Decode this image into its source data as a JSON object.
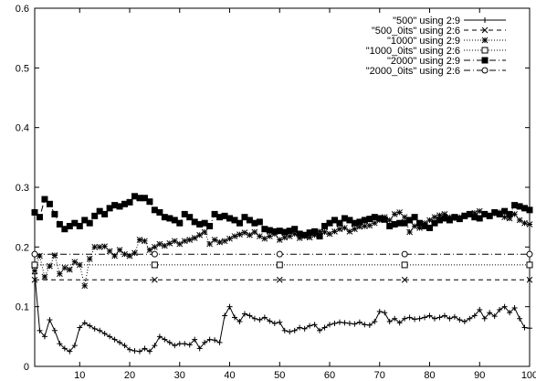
{
  "chart_data": {
    "type": "line",
    "title": "",
    "xlabel": "",
    "ylabel": "",
    "xlim": [
      1,
      100
    ],
    "ylim": [
      0,
      0.6
    ],
    "x_ticks": [
      10,
      20,
      30,
      40,
      50,
      60,
      70,
      80,
      90,
      100
    ],
    "x_tick_labels": [
      "10",
      "20",
      "30",
      "40",
      "50",
      "60",
      "70",
      "80",
      "90",
      "100"
    ],
    "y_ticks": [
      0,
      0.1,
      0.2,
      0.3,
      0.4,
      0.5,
      0.6
    ],
    "y_tick_labels": [
      "0",
      "0.1",
      "0.2",
      "0.3",
      "0.4",
      "0.5",
      "0.6"
    ],
    "grid": false,
    "legend_position": "top-right",
    "series": [
      {
        "name": "\"500\" using 2:9",
        "marker": "plus",
        "dash": "solid",
        "x": [
          1,
          2,
          3,
          4,
          5,
          6,
          7,
          8,
          9,
          10,
          11,
          12,
          13,
          14,
          15,
          16,
          17,
          18,
          19,
          20,
          21,
          22,
          23,
          24,
          25,
          26,
          27,
          28,
          29,
          30,
          31,
          32,
          33,
          34,
          35,
          36,
          37,
          38,
          39,
          40,
          41,
          42,
          43,
          44,
          45,
          46,
          47,
          48,
          49,
          50,
          51,
          52,
          53,
          54,
          55,
          56,
          57,
          58,
          59,
          60,
          61,
          62,
          63,
          64,
          65,
          66,
          67,
          68,
          69,
          70,
          71,
          72,
          73,
          74,
          75,
          76,
          77,
          78,
          79,
          80,
          81,
          82,
          83,
          84,
          85,
          86,
          87,
          88,
          89,
          90,
          91,
          92,
          93,
          94,
          95,
          96,
          97,
          98,
          99,
          100
        ],
        "y": [
          0.155,
          0.06,
          0.05,
          0.078,
          0.06,
          0.038,
          0.03,
          0.025,
          0.035,
          0.065,
          0.073,
          0.068,
          0.063,
          0.06,
          0.055,
          0.05,
          0.045,
          0.04,
          0.035,
          0.028,
          0.026,
          0.025,
          0.03,
          0.025,
          0.035,
          0.05,
          0.045,
          0.04,
          0.035,
          0.038,
          0.038,
          0.036,
          0.045,
          0.03,
          0.04,
          0.045,
          0.044,
          0.04,
          0.085,
          0.1,
          0.082,
          0.075,
          0.088,
          0.085,
          0.08,
          0.078,
          0.082,
          0.076,
          0.072,
          0.074,
          0.06,
          0.058,
          0.06,
          0.065,
          0.063,
          0.068,
          0.07,
          0.06,
          0.065,
          0.07,
          0.072,
          0.074,
          0.073,
          0.072,
          0.071,
          0.074,
          0.07,
          0.069,
          0.075,
          0.092,
          0.09,
          0.075,
          0.08,
          0.073,
          0.08,
          0.082,
          0.079,
          0.08,
          0.082,
          0.085,
          0.08,
          0.082,
          0.085,
          0.08,
          0.083,
          0.078,
          0.075,
          0.08,
          0.085,
          0.095,
          0.08,
          0.09,
          0.084,
          0.095,
          0.1,
          0.09,
          0.098,
          0.08,
          0.065,
          0.064
        ]
      },
      {
        "name": "\"500_0its\" using 2:6",
        "marker": "cross",
        "dash": "dashed",
        "x": [
          1,
          25,
          50,
          75,
          100
        ],
        "y": [
          0.145,
          0.145,
          0.145,
          0.145,
          0.145
        ]
      },
      {
        "name": "\"1000\" using 2:9",
        "marker": "star",
        "dash": "dotted",
        "x": [
          1,
          2,
          3,
          4,
          5,
          6,
          7,
          8,
          9,
          10,
          11,
          12,
          13,
          14,
          15,
          16,
          17,
          18,
          19,
          20,
          21,
          22,
          23,
          24,
          25,
          26,
          27,
          28,
          29,
          30,
          31,
          32,
          33,
          34,
          35,
          36,
          37,
          38,
          39,
          40,
          41,
          42,
          43,
          44,
          45,
          46,
          47,
          48,
          49,
          50,
          51,
          52,
          53,
          54,
          55,
          56,
          57,
          58,
          59,
          60,
          61,
          62,
          63,
          64,
          65,
          66,
          67,
          68,
          69,
          70,
          71,
          72,
          73,
          74,
          75,
          76,
          77,
          78,
          79,
          80,
          81,
          82,
          83,
          84,
          85,
          86,
          87,
          88,
          89,
          90,
          91,
          92,
          93,
          94,
          95,
          96,
          97,
          98,
          99,
          100
        ],
        "y": [
          0.16,
          0.185,
          0.15,
          0.168,
          0.186,
          0.155,
          0.165,
          0.162,
          0.175,
          0.17,
          0.135,
          0.18,
          0.2,
          0.2,
          0.201,
          0.193,
          0.185,
          0.195,
          0.188,
          0.185,
          0.19,
          0.212,
          0.21,
          0.195,
          0.2,
          0.205,
          0.202,
          0.206,
          0.21,
          0.205,
          0.21,
          0.212,
          0.215,
          0.22,
          0.225,
          0.205,
          0.212,
          0.208,
          0.21,
          0.214,
          0.218,
          0.221,
          0.224,
          0.22,
          0.225,
          0.218,
          0.214,
          0.218,
          0.222,
          0.212,
          0.216,
          0.218,
          0.222,
          0.215,
          0.218,
          0.216,
          0.22,
          0.226,
          0.225,
          0.222,
          0.226,
          0.23,
          0.232,
          0.226,
          0.23,
          0.234,
          0.235,
          0.236,
          0.24,
          0.245,
          0.25,
          0.245,
          0.255,
          0.258,
          0.25,
          0.225,
          0.235,
          0.232,
          0.24,
          0.245,
          0.25,
          0.253,
          0.255,
          0.25,
          0.248,
          0.25,
          0.253,
          0.255,
          0.257,
          0.26,
          0.255,
          0.253,
          0.256,
          0.258,
          0.25,
          0.248,
          0.255,
          0.245,
          0.24,
          0.238
        ]
      },
      {
        "name": "\"1000_0its\" using 2:6",
        "marker": "square",
        "dash": "dotted",
        "x": [
          1,
          25,
          50,
          75,
          100
        ],
        "y": [
          0.17,
          0.17,
          0.17,
          0.17,
          0.17
        ]
      },
      {
        "name": "\"2000\" using 2:9",
        "marker": "filled-square",
        "dash": "dashdot",
        "x": [
          1,
          2,
          3,
          4,
          5,
          6,
          7,
          8,
          9,
          10,
          11,
          12,
          13,
          14,
          15,
          16,
          17,
          18,
          19,
          20,
          21,
          22,
          23,
          24,
          25,
          26,
          27,
          28,
          29,
          30,
          31,
          32,
          33,
          34,
          35,
          36,
          37,
          38,
          39,
          40,
          41,
          42,
          43,
          44,
          45,
          46,
          47,
          48,
          49,
          50,
          51,
          52,
          53,
          54,
          55,
          56,
          57,
          58,
          59,
          60,
          61,
          62,
          63,
          64,
          65,
          66,
          67,
          68,
          69,
          70,
          71,
          72,
          73,
          74,
          75,
          76,
          77,
          78,
          79,
          80,
          81,
          82,
          83,
          84,
          85,
          86,
          87,
          88,
          89,
          90,
          91,
          92,
          93,
          94,
          95,
          96,
          97,
          98,
          99,
          100
        ],
        "y": [
          0.258,
          0.25,
          0.28,
          0.272,
          0.255,
          0.238,
          0.23,
          0.235,
          0.24,
          0.235,
          0.245,
          0.24,
          0.252,
          0.26,
          0.255,
          0.265,
          0.27,
          0.268,
          0.272,
          0.275,
          0.285,
          0.282,
          0.282,
          0.276,
          0.262,
          0.258,
          0.25,
          0.248,
          0.245,
          0.24,
          0.255,
          0.25,
          0.242,
          0.238,
          0.24,
          0.235,
          0.255,
          0.25,
          0.252,
          0.248,
          0.245,
          0.24,
          0.25,
          0.245,
          0.24,
          0.242,
          0.23,
          0.228,
          0.226,
          0.227,
          0.225,
          0.227,
          0.23,
          0.222,
          0.22,
          0.224,
          0.226,
          0.218,
          0.235,
          0.24,
          0.245,
          0.24,
          0.248,
          0.245,
          0.24,
          0.242,
          0.245,
          0.247,
          0.25,
          0.248,
          0.246,
          0.235,
          0.238,
          0.24,
          0.24,
          0.245,
          0.25,
          0.24,
          0.235,
          0.232,
          0.24,
          0.245,
          0.248,
          0.245,
          0.25,
          0.247,
          0.252,
          0.255,
          0.25,
          0.248,
          0.255,
          0.252,
          0.258,
          0.255,
          0.26,
          0.255,
          0.27,
          0.268,
          0.265,
          0.262
        ]
      },
      {
        "name": "\"2000_0its\" using 2:6",
        "marker": "circle",
        "dash": "dashdot",
        "x": [
          1,
          25,
          50,
          75,
          100
        ],
        "y": [
          0.188,
          0.188,
          0.188,
          0.188,
          0.188
        ]
      }
    ]
  }
}
